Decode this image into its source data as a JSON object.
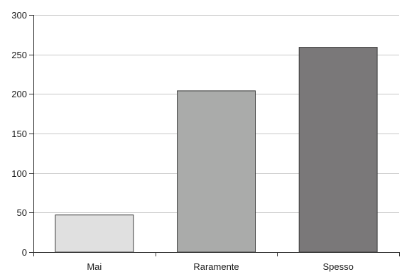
{
  "chart_data": {
    "type": "bar",
    "categories": [
      "Mai",
      "Raramente",
      "Spesso"
    ],
    "values": [
      47,
      204,
      259
    ],
    "colors": [
      "#e0e0e0",
      "#aaabaa",
      "#7a7879"
    ],
    "title": "",
    "xlabel": "",
    "ylabel": "",
    "ylim": [
      0,
      300
    ],
    "yticks": [
      0,
      50,
      100,
      150,
      200,
      250,
      300
    ],
    "grid": "horizontal",
    "legend": "none"
  }
}
